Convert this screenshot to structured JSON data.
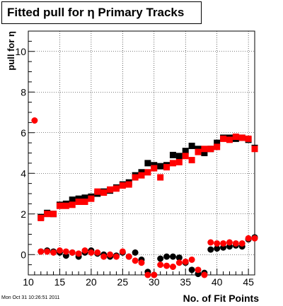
{
  "title": "Fitted pull for  η Primary Tracks",
  "footer": "Mon Oct 31 10:26:51 2011",
  "chart_data": {
    "type": "scatter",
    "title": "Fitted pull for  η Primary Tracks",
    "xlabel": "No. of Fit Points",
    "ylabel": "pull for η",
    "xlim": [
      10,
      46
    ],
    "ylim": [
      -1,
      11
    ],
    "x_ticks": [
      10,
      15,
      20,
      25,
      30,
      35,
      40,
      45
    ],
    "y_ticks": [
      0,
      2,
      4,
      6,
      8,
      10
    ],
    "grid": true,
    "colors": {
      "series_black": "#000000",
      "series_red": "#ff0000"
    },
    "series": [
      {
        "marker": "square",
        "color": "#000000",
        "points": [
          [
            12,
            1.85
          ],
          [
            13,
            2.05
          ],
          [
            14,
            2.0
          ],
          [
            15,
            2.45
          ],
          [
            16,
            2.5
          ],
          [
            17,
            2.7
          ],
          [
            18,
            2.75
          ],
          [
            19,
            2.8
          ],
          [
            20,
            2.85
          ],
          [
            21,
            3.0
          ],
          [
            22,
            3.1
          ],
          [
            23,
            3.15
          ],
          [
            24,
            3.3
          ],
          [
            25,
            3.45
          ],
          [
            26,
            3.55
          ],
          [
            27,
            3.9
          ],
          [
            28,
            4.05
          ],
          [
            29,
            4.5
          ],
          [
            30,
            4.4
          ],
          [
            31,
            4.35
          ],
          [
            32,
            4.4
          ],
          [
            33,
            4.9
          ],
          [
            34,
            4.85
          ],
          [
            35,
            5.1
          ],
          [
            36,
            5.35
          ],
          [
            37,
            5.2
          ],
          [
            38,
            5.0
          ],
          [
            39,
            5.2
          ],
          [
            40,
            5.5
          ],
          [
            41,
            5.75
          ],
          [
            42,
            5.75
          ],
          [
            43,
            5.7
          ],
          [
            44,
            5.75
          ],
          [
            45,
            5.65
          ],
          [
            46,
            5.25
          ]
        ]
      },
      {
        "marker": "square",
        "color": "#ff0000",
        "points": [
          [
            12,
            1.8
          ],
          [
            13,
            2.0
          ],
          [
            14,
            2.0
          ],
          [
            15,
            2.4
          ],
          [
            16,
            2.4
          ],
          [
            17,
            2.45
          ],
          [
            18,
            2.6
          ],
          [
            19,
            2.6
          ],
          [
            20,
            2.75
          ],
          [
            21,
            3.1
          ],
          [
            22,
            3.05
          ],
          [
            23,
            3.2
          ],
          [
            24,
            3.25
          ],
          [
            25,
            3.4
          ],
          [
            26,
            3.45
          ],
          [
            27,
            3.8
          ],
          [
            28,
            3.9
          ],
          [
            29,
            4.05
          ],
          [
            30,
            4.25
          ],
          [
            31,
            3.8
          ],
          [
            32,
            4.3
          ],
          [
            33,
            4.5
          ],
          [
            34,
            4.55
          ],
          [
            35,
            4.85
          ],
          [
            36,
            4.65
          ],
          [
            37,
            5.05
          ],
          [
            38,
            5.2
          ],
          [
            39,
            5.2
          ],
          [
            40,
            5.3
          ],
          [
            41,
            5.7
          ],
          [
            42,
            5.65
          ],
          [
            43,
            5.8
          ],
          [
            44,
            5.75
          ],
          [
            45,
            5.7
          ],
          [
            46,
            5.2
          ]
        ]
      },
      {
        "marker": "circle",
        "color": "#000000",
        "points": [
          [
            12,
            0.15
          ],
          [
            13,
            0.2
          ],
          [
            14,
            0.15
          ],
          [
            15,
            0.1
          ],
          [
            16,
            -0.05
          ],
          [
            17,
            0.1
          ],
          [
            18,
            -0.1
          ],
          [
            19,
            0.1
          ],
          [
            20,
            0.2
          ],
          [
            21,
            0.05
          ],
          [
            22,
            0.0
          ],
          [
            23,
            -0.1
          ],
          [
            24,
            -0.05
          ],
          [
            25,
            0.1
          ],
          [
            26,
            -0.1
          ],
          [
            27,
            0.1
          ],
          [
            28,
            -0.25
          ],
          [
            29,
            -0.85
          ],
          [
            30,
            -1.0
          ],
          [
            31,
            -0.2
          ],
          [
            32,
            -0.1
          ],
          [
            33,
            -0.1
          ],
          [
            34,
            -0.15
          ],
          [
            35,
            -0.4
          ],
          [
            36,
            -0.75
          ],
          [
            37,
            -0.95
          ],
          [
            38,
            -0.9
          ],
          [
            39,
            0.25
          ],
          [
            40,
            0.3
          ],
          [
            41,
            0.35
          ],
          [
            42,
            0.4
          ],
          [
            43,
            0.45
          ],
          [
            44,
            0.4
          ],
          [
            45,
            0.75
          ],
          [
            46,
            0.85
          ]
        ]
      },
      {
        "marker": "circle",
        "color": "#ff0000",
        "points": [
          [
            11,
            6.6
          ],
          [
            12,
            0.15
          ],
          [
            13,
            0.15
          ],
          [
            14,
            0.1
          ],
          [
            15,
            0.2
          ],
          [
            16,
            0.15
          ],
          [
            17,
            0.1
          ],
          [
            18,
            0.05
          ],
          [
            19,
            0.2
          ],
          [
            20,
            0.1
          ],
          [
            21,
            0.1
          ],
          [
            22,
            -0.1
          ],
          [
            23,
            0.0
          ],
          [
            24,
            -0.1
          ],
          [
            25,
            0.15
          ],
          [
            26,
            -0.1
          ],
          [
            27,
            -0.3
          ],
          [
            28,
            -0.4
          ],
          [
            29,
            -1.0
          ],
          [
            30,
            -1.0
          ],
          [
            31,
            -0.5
          ],
          [
            32,
            -0.55
          ],
          [
            33,
            -0.6
          ],
          [
            34,
            -0.4
          ],
          [
            35,
            -0.35
          ],
          [
            36,
            -0.25
          ],
          [
            37,
            -0.75
          ],
          [
            38,
            -1.0
          ],
          [
            39,
            0.6
          ],
          [
            40,
            0.55
          ],
          [
            41,
            0.55
          ],
          [
            42,
            0.6
          ],
          [
            43,
            0.55
          ],
          [
            44,
            0.55
          ],
          [
            45,
            0.8
          ],
          [
            46,
            0.8
          ]
        ]
      }
    ]
  }
}
